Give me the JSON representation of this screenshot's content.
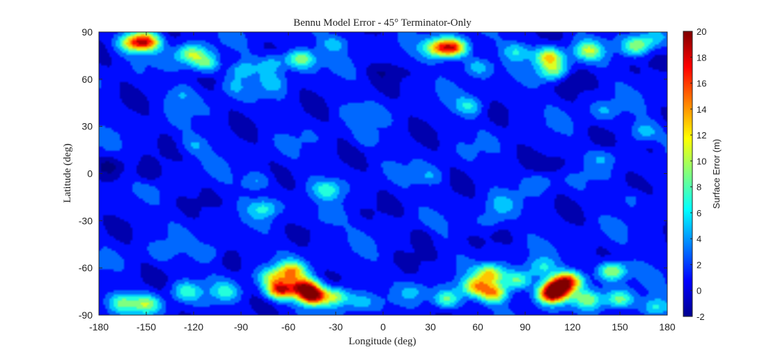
{
  "chart_data": {
    "type": "heatmap",
    "subtype": "filled-contour",
    "title": "Bennu Model Error - 45° Terminator-Only",
    "xlabel": "Longitude (deg)",
    "ylabel": "Latitude (deg)",
    "xlim": [
      -180,
      180
    ],
    "ylim": [
      -90,
      90
    ],
    "x_ticks": [
      -180,
      -150,
      -120,
      -90,
      -60,
      -30,
      0,
      30,
      60,
      90,
      120,
      150,
      180
    ],
    "y_ticks": [
      90,
      60,
      30,
      0,
      -30,
      -60,
      -90
    ],
    "x_tick_labels": [
      "-180",
      "-150",
      "-120",
      "-90",
      "-60",
      "-30",
      "0",
      "30",
      "60",
      "90",
      "120",
      "150",
      "180"
    ],
    "y_tick_labels": [
      "90",
      "60",
      "30",
      "0",
      "-30",
      "-60",
      "-90"
    ],
    "colorbar": {
      "label": "Surface Error (m)",
      "min": -2,
      "max": 20,
      "ticks": [
        20,
        18,
        16,
        14,
        12,
        10,
        8,
        6,
        4,
        2,
        0,
        -2
      ],
      "tick_labels": [
        "20",
        "18",
        "16",
        "14",
        "12",
        "10",
        "8",
        "6",
        "4",
        "2",
        "0",
        "-2"
      ],
      "colormap": "jet"
    },
    "background_value": 1,
    "hotspots": [
      {
        "lon": -160,
        "lat": 83,
        "value": 11
      },
      {
        "lon": -150,
        "lat": 84,
        "value": 15
      },
      {
        "lon": -122,
        "lat": 76,
        "value": 10
      },
      {
        "lon": -112,
        "lat": 70,
        "value": 9
      },
      {
        "lon": -90,
        "lat": 66,
        "value": 6
      },
      {
        "lon": -70,
        "lat": 70,
        "value": 6
      },
      {
        "lon": -52,
        "lat": 73,
        "value": 10
      },
      {
        "lon": -30,
        "lat": 83,
        "value": 5
      },
      {
        "lon": 35,
        "lat": 80,
        "value": 12
      },
      {
        "lon": 45,
        "lat": 80,
        "value": 15
      },
      {
        "lon": 60,
        "lat": 68,
        "value": 6
      },
      {
        "lon": 85,
        "lat": 78,
        "value": 6
      },
      {
        "lon": 105,
        "lat": 74,
        "value": 12
      },
      {
        "lon": 108,
        "lat": 65,
        "value": 9
      },
      {
        "lon": 130,
        "lat": 78,
        "value": 9
      },
      {
        "lon": 160,
        "lat": 81,
        "value": 9
      },
      {
        "lon": 170,
        "lat": 85,
        "value": 5
      },
      {
        "lon": 55,
        "lat": 43,
        "value": 6
      },
      {
        "lon": -128,
        "lat": 50,
        "value": 4
      },
      {
        "lon": -95,
        "lat": 55,
        "value": 4
      },
      {
        "lon": -70,
        "lat": 58,
        "value": 4
      },
      {
        "lon": -20,
        "lat": 40,
        "value": 3
      },
      {
        "lon": 140,
        "lat": 40,
        "value": 4
      },
      {
        "lon": 165,
        "lat": 27,
        "value": 5
      },
      {
        "lon": -120,
        "lat": 18,
        "value": 4
      },
      {
        "lon": -80,
        "lat": -5,
        "value": 5
      },
      {
        "lon": -75,
        "lat": -22,
        "value": 6
      },
      {
        "lon": -35,
        "lat": -10,
        "value": 6
      },
      {
        "lon": -35,
        "lat": -28,
        "value": 4
      },
      {
        "lon": -10,
        "lat": 22,
        "value": 3
      },
      {
        "lon": 30,
        "lat": -2,
        "value": 4
      },
      {
        "lon": 75,
        "lat": -20,
        "value": 4
      },
      {
        "lon": 68,
        "lat": -30,
        "value": 4
      },
      {
        "lon": 100,
        "lat": -5,
        "value": 4
      },
      {
        "lon": 140,
        "lat": 10,
        "value": 4
      },
      {
        "lon": 160,
        "lat": -15,
        "value": 3
      },
      {
        "lon": -110,
        "lat": -50,
        "value": 4
      },
      {
        "lon": -140,
        "lat": -50,
        "value": 3
      },
      {
        "lon": -165,
        "lat": -82,
        "value": 8
      },
      {
        "lon": -150,
        "lat": -83,
        "value": 9
      },
      {
        "lon": -125,
        "lat": -75,
        "value": 7
      },
      {
        "lon": -100,
        "lat": -75,
        "value": 6
      },
      {
        "lon": -70,
        "lat": -66,
        "value": 8
      },
      {
        "lon": -58,
        "lat": -62,
        "value": 12
      },
      {
        "lon": -65,
        "lat": -74,
        "value": 17
      },
      {
        "lon": -50,
        "lat": -72,
        "value": 16
      },
      {
        "lon": -45,
        "lat": -78,
        "value": 18
      },
      {
        "lon": -30,
        "lat": -78,
        "value": 10
      },
      {
        "lon": -15,
        "lat": -82,
        "value": 5
      },
      {
        "lon": 20,
        "lat": -75,
        "value": 4
      },
      {
        "lon": 40,
        "lat": -80,
        "value": 9
      },
      {
        "lon": 58,
        "lat": -72,
        "value": 11
      },
      {
        "lon": 68,
        "lat": -64,
        "value": 12
      },
      {
        "lon": 70,
        "lat": -76,
        "value": 13
      },
      {
        "lon": 85,
        "lat": -68,
        "value": 9
      },
      {
        "lon": 100,
        "lat": -60,
        "value": 6
      },
      {
        "lon": 110,
        "lat": -72,
        "value": 15
      },
      {
        "lon": 107,
        "lat": -77,
        "value": 18
      },
      {
        "lon": 118,
        "lat": -68,
        "value": 14
      },
      {
        "lon": 130,
        "lat": -80,
        "value": 8
      },
      {
        "lon": 145,
        "lat": -62,
        "value": 11
      },
      {
        "lon": 150,
        "lat": -80,
        "value": 9
      },
      {
        "lon": 172,
        "lat": -85,
        "value": 7
      }
    ],
    "lows": [
      {
        "lon": -150,
        "lat": 0,
        "value": -2
      },
      {
        "lon": -172,
        "lat": 5,
        "value": -2
      },
      {
        "lon": -100,
        "lat": 70,
        "value": -1
      },
      {
        "lon": 0,
        "lat": 65,
        "value": -1
      },
      {
        "lon": 120,
        "lat": 60,
        "value": -1
      },
      {
        "lon": 110,
        "lat": 5,
        "value": -1
      },
      {
        "lon": 170,
        "lat": 15,
        "value": -1
      },
      {
        "lon": 25,
        "lat": -40,
        "value": -1
      },
      {
        "lon": 0,
        "lat": -70,
        "value": 0
      }
    ]
  }
}
